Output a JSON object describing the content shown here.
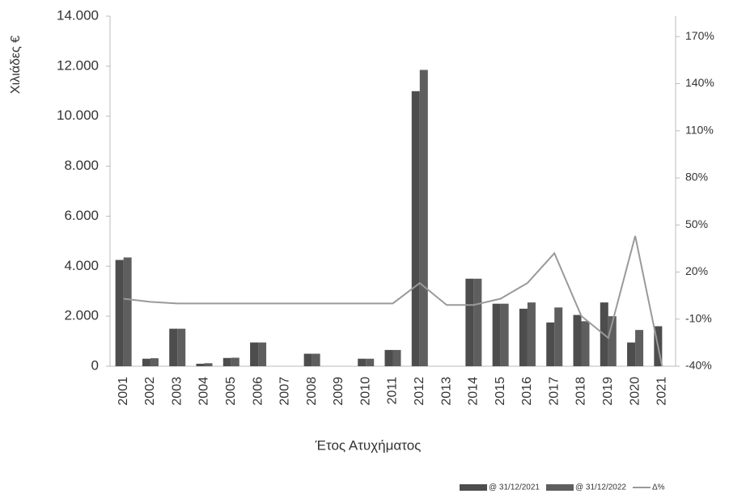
{
  "chart_data": {
    "type": "bar",
    "y_label": "Χιλιάδες €",
    "x_label": "Έτος Ατυχήματος",
    "categories": [
      "2001",
      "2002",
      "2003",
      "2004",
      "2005",
      "2006",
      "2007",
      "2008",
      "2009",
      "2010",
      "2011",
      "2012",
      "2013",
      "2014",
      "2015",
      "2016",
      "2017",
      "2018",
      "2019",
      "2020",
      "2021"
    ],
    "series": [
      {
        "name": "@ 31/12/2021",
        "color": "#4d4d4d",
        "values": [
          4250,
          300,
          1500,
          100,
          330,
          950,
          0,
          500,
          0,
          300,
          650,
          11000,
          0,
          3500,
          2500,
          2300,
          1750,
          2050,
          2550,
          950,
          1600
        ]
      },
      {
        "name": "@ 31/12/2022",
        "color": "#5e5e5e",
        "values": [
          4350,
          320,
          1500,
          120,
          340,
          950,
          0,
          500,
          0,
          300,
          650,
          11850,
          0,
          3500,
          2500,
          2550,
          2350,
          1800,
          2000,
          1450,
          0
        ]
      },
      {
        "name": "Δ%",
        "color": "#9a9a9a",
        "type": "line",
        "axis": "y2",
        "values": [
          3,
          1,
          0,
          0,
          0,
          0,
          0,
          0,
          0,
          0,
          0,
          13,
          -1,
          -1,
          3,
          13,
          32,
          -8,
          -22,
          43,
          -40
        ]
      }
    ],
    "ylim": [
      0,
      14000
    ],
    "yticks": [
      0,
      {
        "value": 2000,
        "label": "2.000"
      },
      {
        "value": 4000,
        "label": "4.000"
      },
      {
        "value": 6000,
        "label": "6.000"
      },
      {
        "value": 8000,
        "label": "8.000"
      },
      {
        "value": 10000,
        "label": "10.000"
      },
      {
        "value": 12000,
        "label": "12.000"
      },
      {
        "value": 14000,
        "label": "14.000"
      }
    ],
    "y2lim": [
      -40,
      183
    ],
    "y2ticks": [
      {
        "value": -40,
        "label": "-40%"
      },
      {
        "value": -10,
        "label": "-10%"
      },
      {
        "value": 20,
        "label": "20%"
      },
      {
        "value": 50,
        "label": "50%"
      },
      {
        "value": 80,
        "label": "80%"
      },
      {
        "value": 110,
        "label": "110%"
      },
      {
        "value": 140,
        "label": "140%"
      },
      {
        "value": 170,
        "label": "170%"
      }
    ],
    "grid": false,
    "legend": "bottom-right"
  }
}
